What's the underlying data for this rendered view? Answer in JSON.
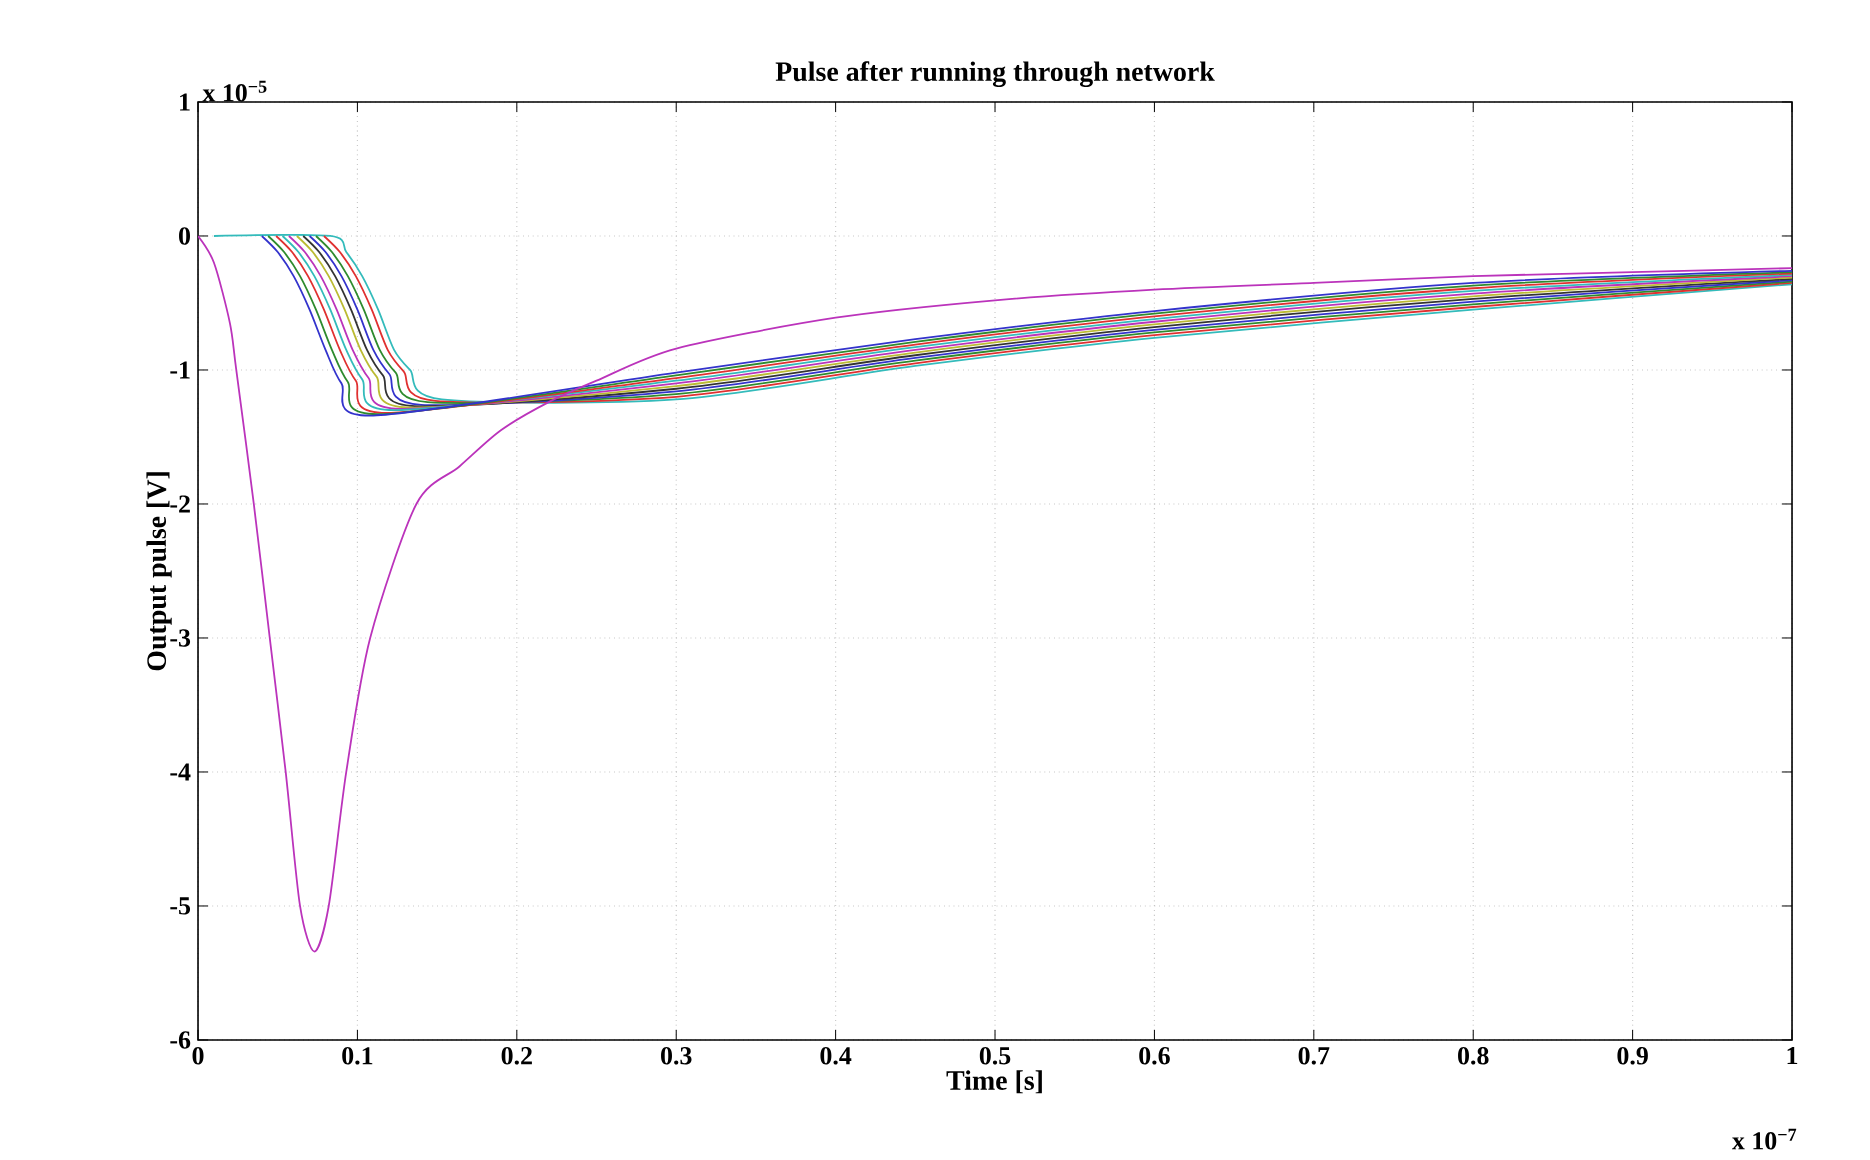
{
  "chart_data": {
    "type": "line",
    "title": "Pulse after running through network",
    "xlabel": "Time [s]",
    "ylabel": "Output pulse [V]",
    "annotations": [
      "x 10$^{−5}$",
      "x 10$^{−7}$"
    ],
    "xlim": [
      0,
      1
    ],
    "ylim": [
      -6,
      1
    ],
    "xticks": [
      0,
      0.1,
      0.2,
      0.3,
      0.4,
      0.5,
      0.6,
      0.7,
      0.8,
      0.9,
      1
    ],
    "yticks": [
      -6,
      -5,
      -4,
      -3,
      -2,
      -1,
      0,
      1
    ],
    "grid": true,
    "marker": "none",
    "line_style": "solid",
    "series": [
      {
        "color": "#33bbbb",
        "x": [
          0.01,
          0.083,
          0.093,
          0.103,
          0.113,
          0.123,
          0.133,
          0.153,
          0.3,
          0.45,
          0.6,
          0.8,
          1
        ],
        "values": [
          0,
          0,
          -0.12,
          -0.3,
          -0.55,
          -0.85,
          -1.0,
          -1.22,
          -1.22,
          -0.97,
          -0.76,
          -0.55,
          -0.36
        ]
      },
      {
        "color": "#e03030",
        "x": [
          0.079,
          0.089,
          0.099,
          0.109,
          0.119,
          0.129,
          0.149,
          0.3,
          0.45,
          0.6,
          0.8,
          1
        ],
        "values": [
          0,
          -0.12,
          -0.3,
          -0.55,
          -0.85,
          -1.01,
          -1.23,
          -1.2,
          -0.95,
          -0.74,
          -0.53,
          -0.35
        ]
      },
      {
        "color": "#2e8b2e",
        "x": [
          0.074,
          0.084,
          0.094,
          0.104,
          0.114,
          0.124,
          0.144,
          0.3,
          0.45,
          0.6,
          0.8,
          1
        ],
        "values": [
          0,
          -0.12,
          -0.3,
          -0.55,
          -0.85,
          -1.02,
          -1.24,
          -1.18,
          -0.93,
          -0.72,
          -0.51,
          -0.34
        ]
      },
      {
        "color": "#3333cc",
        "x": [
          0.07,
          0.08,
          0.09,
          0.1,
          0.11,
          0.12,
          0.14,
          0.3,
          0.45,
          0.6,
          0.8,
          1
        ],
        "values": [
          0,
          -0.12,
          -0.3,
          -0.55,
          -0.85,
          -1.03,
          -1.26,
          -1.16,
          -0.91,
          -0.7,
          -0.49,
          -0.33
        ]
      },
      {
        "color": "#333333",
        "x": [
          0.066,
          0.076,
          0.086,
          0.096,
          0.106,
          0.116,
          0.136,
          0.3,
          0.45,
          0.6,
          0.8,
          1
        ],
        "values": [
          0,
          -0.12,
          -0.3,
          -0.55,
          -0.85,
          -1.04,
          -1.27,
          -1.14,
          -0.89,
          -0.68,
          -0.47,
          -0.32
        ]
      },
      {
        "color": "#bbbb33",
        "x": [
          0.062,
          0.072,
          0.082,
          0.092,
          0.102,
          0.112,
          0.132,
          0.3,
          0.45,
          0.6,
          0.8,
          1
        ],
        "values": [
          0,
          -0.12,
          -0.3,
          -0.55,
          -0.85,
          -1.05,
          -1.28,
          -1.12,
          -0.87,
          -0.66,
          -0.45,
          -0.31
        ]
      },
      {
        "color": "#bb33bb",
        "x": [
          0.057,
          0.067,
          0.077,
          0.087,
          0.097,
          0.107,
          0.127,
          0.3,
          0.45,
          0.6,
          0.8,
          1
        ],
        "values": [
          0,
          -0.12,
          -0.3,
          -0.55,
          -0.85,
          -1.06,
          -1.29,
          -1.1,
          -0.85,
          -0.64,
          -0.43,
          -0.3
        ]
      },
      {
        "color": "#33bbbb",
        "x": [
          0.053,
          0.063,
          0.073,
          0.083,
          0.093,
          0.103,
          0.123,
          0.3,
          0.45,
          0.6,
          0.8,
          1
        ],
        "values": [
          0,
          -0.12,
          -0.3,
          -0.55,
          -0.85,
          -1.07,
          -1.3,
          -1.08,
          -0.83,
          -0.62,
          -0.41,
          -0.29
        ]
      },
      {
        "color": "#e03030",
        "x": [
          0.049,
          0.059,
          0.069,
          0.079,
          0.089,
          0.099,
          0.119,
          0.3,
          0.45,
          0.6,
          0.8,
          1
        ],
        "values": [
          0,
          -0.12,
          -0.3,
          -0.55,
          -0.85,
          -1.08,
          -1.32,
          -1.06,
          -0.81,
          -0.6,
          -0.39,
          -0.28
        ]
      },
      {
        "color": "#2e8b2e",
        "x": [
          0.044,
          0.054,
          0.064,
          0.074,
          0.084,
          0.094,
          0.114,
          0.3,
          0.45,
          0.6,
          0.8,
          1
        ],
        "values": [
          0,
          -0.12,
          -0.3,
          -0.55,
          -0.85,
          -1.09,
          -1.33,
          -1.04,
          -0.79,
          -0.58,
          -0.37,
          -0.27
        ]
      },
      {
        "color": "#3333cc",
        "x": [
          0.04,
          0.05,
          0.06,
          0.07,
          0.08,
          0.09,
          0.11,
          0.3,
          0.45,
          0.6,
          0.8,
          1
        ],
        "values": [
          0,
          -0.12,
          -0.3,
          -0.55,
          -0.85,
          -1.1,
          -1.34,
          -1.02,
          -0.77,
          -0.56,
          -0.35,
          -0.26
        ]
      },
      {
        "color": "#bb33bb",
        "x": [
          0,
          0.01,
          0.02,
          0.024,
          0.035,
          0.045,
          0.055,
          0.064,
          0.073,
          0.082,
          0.093,
          0.108,
          0.137,
          0.164,
          0.19,
          0.22,
          0.25,
          0.3,
          0.4,
          0.5,
          0.6,
          0.7,
          0.8,
          0.9,
          1
        ],
        "values": [
          0,
          -0.2,
          -0.65,
          -1,
          -2,
          -3,
          -4,
          -5,
          -5.34,
          -5,
          -4,
          -3,
          -2,
          -1.72,
          -1.45,
          -1.24,
          -1.08,
          -0.84,
          -0.61,
          -0.48,
          -0.4,
          -0.35,
          -0.3,
          -0.27,
          -0.24
        ]
      }
    ]
  }
}
